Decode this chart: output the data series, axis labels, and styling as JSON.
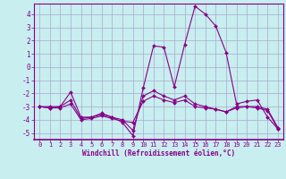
{
  "background_color": "#c8eef0",
  "grid_color": "#aaaacc",
  "line_color": "#880088",
  "marker_color": "#880088",
  "xlabel": "Windchill (Refroidissement éolien,°C)",
  "xlabel_color": "#880088",
  "tick_color": "#880088",
  "spine_color": "#880088",
  "xlim": [
    -0.5,
    23.5
  ],
  "ylim": [
    -5.5,
    4.8
  ],
  "yticks": [
    -5,
    -4,
    -3,
    -2,
    -1,
    0,
    1,
    2,
    3,
    4
  ],
  "xtick_labels": [
    "0",
    "1",
    "2",
    "3",
    "4",
    "5",
    "6",
    "7",
    "8",
    "9",
    "10",
    "11",
    "12",
    "13",
    "14",
    "15",
    "16",
    "17",
    "18",
    "19",
    "20",
    "21",
    "22",
    "23"
  ],
  "xtick_positions": [
    0,
    1,
    2,
    3,
    4,
    5,
    6,
    7,
    8,
    9,
    10,
    11,
    12,
    13,
    14,
    15,
    16,
    17,
    18,
    19,
    20,
    21,
    22,
    23
  ],
  "series": [
    {
      "x": [
        0,
        1,
        2,
        3,
        4,
        5,
        6,
        7,
        8,
        9,
        10,
        11,
        12,
        13,
        14,
        15,
        16,
        17,
        18,
        19,
        20,
        21,
        22,
        23
      ],
      "y": [
        -3.0,
        -3.0,
        -3.0,
        -1.9,
        -3.8,
        -3.8,
        -3.5,
        -3.8,
        -4.2,
        -5.2,
        -1.6,
        1.6,
        1.5,
        -1.5,
        1.7,
        4.6,
        4.0,
        3.1,
        1.1,
        -2.8,
        -2.6,
        -2.5,
        -3.8,
        -4.7
      ]
    },
    {
      "x": [
        0,
        1,
        2,
        3,
        4,
        5,
        6,
        7,
        8,
        9,
        10,
        11,
        12,
        13,
        14,
        15,
        16,
        17,
        18,
        19,
        20,
        21,
        22,
        23
      ],
      "y": [
        -3.0,
        -3.1,
        -3.0,
        -2.5,
        -3.9,
        -3.8,
        -3.6,
        -3.8,
        -4.0,
        -4.8,
        -2.2,
        -1.8,
        -2.2,
        -2.5,
        -2.2,
        -2.8,
        -3.0,
        -3.2,
        -3.4,
        -3.0,
        -3.0,
        -3.0,
        -3.2,
        -4.6
      ]
    },
    {
      "x": [
        0,
        1,
        2,
        3,
        4,
        5,
        6,
        7,
        8,
        9,
        10,
        11,
        12,
        13,
        14,
        15,
        16,
        17,
        18,
        19,
        20,
        21,
        22,
        23
      ],
      "y": [
        -3.0,
        -3.1,
        -3.1,
        -2.8,
        -4.0,
        -3.9,
        -3.7,
        -3.9,
        -4.1,
        -4.2,
        -2.6,
        -2.2,
        -2.5,
        -2.7,
        -2.5,
        -3.0,
        -3.1,
        -3.2,
        -3.4,
        -3.1,
        -3.0,
        -3.1,
        -3.3,
        -4.7
      ]
    }
  ]
}
